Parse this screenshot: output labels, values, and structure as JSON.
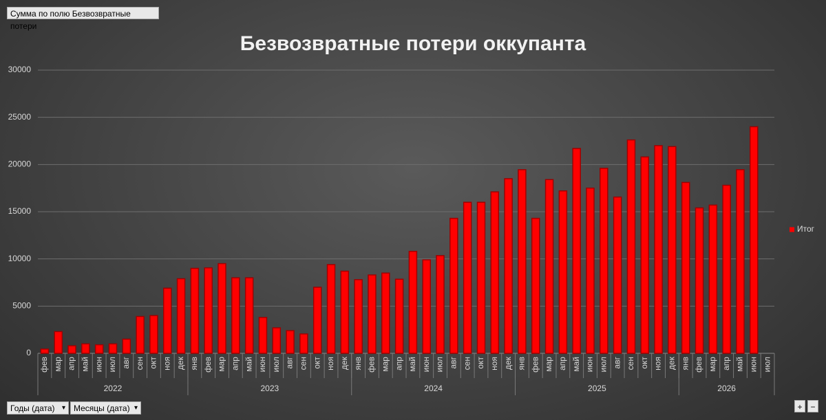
{
  "chart_data": {
    "type": "bar",
    "title": "Безвозвратные потери оккупанта",
    "categories": [
      "фев",
      "мар",
      "апр",
      "май",
      "июн",
      "июл",
      "авг",
      "сен",
      "окт",
      "ноя",
      "дек",
      "янв",
      "фев",
      "мар",
      "апр",
      "май",
      "июн",
      "июл",
      "авг",
      "сен",
      "окт",
      "ноя",
      "дек",
      "янв",
      "фев",
      "мар",
      "апр",
      "май",
      "июн",
      "июл",
      "авг",
      "сен",
      "окт",
      "ноя",
      "дек",
      "янв",
      "фев",
      "мар",
      "апр",
      "май",
      "июн",
      "июл",
      "авг",
      "сен",
      "окт",
      "ноя",
      "дек",
      "янв",
      "фев",
      "мар",
      "апр",
      "май",
      "июн",
      "июл"
    ],
    "year_groups": [
      {
        "label": "2022",
        "count": 11
      },
      {
        "label": "2023",
        "count": 12
      },
      {
        "label": "2024",
        "count": 12
      },
      {
        "label": "2025",
        "count": 12
      },
      {
        "label": "2026",
        "count": 7
      }
    ],
    "series": [
      {
        "name": "Итог",
        "color": "#ff0000",
        "values": [
          450,
          2300,
          800,
          1000,
          900,
          1000,
          1500,
          3900,
          4000,
          6900,
          7900,
          9000,
          9050,
          9500,
          8000,
          8000,
          3800,
          2700,
          2400,
          2050,
          7000,
          9400,
          8700,
          7800,
          8300,
          8500,
          7850,
          10800,
          9900,
          10350,
          14300,
          16000,
          16000,
          17100,
          18500,
          19450,
          14300,
          18400,
          17200,
          21700,
          17500,
          19600,
          16550,
          22600,
          20800,
          22000,
          21900,
          18100,
          15400,
          15700,
          17800,
          19450,
          24000,
          null
        ]
      }
    ],
    "ylim": [
      0,
      30000
    ],
    "yticks": [
      0,
      5000,
      10000,
      15000,
      20000,
      25000,
      30000
    ],
    "grid": true,
    "legend": "right"
  },
  "ui": {
    "value_field": "Сумма по полю Безвозвратные потери",
    "row_fields": [
      "Годы (дата)",
      "Месяцы (дата)"
    ],
    "expand": "+",
    "collapse": "−"
  }
}
